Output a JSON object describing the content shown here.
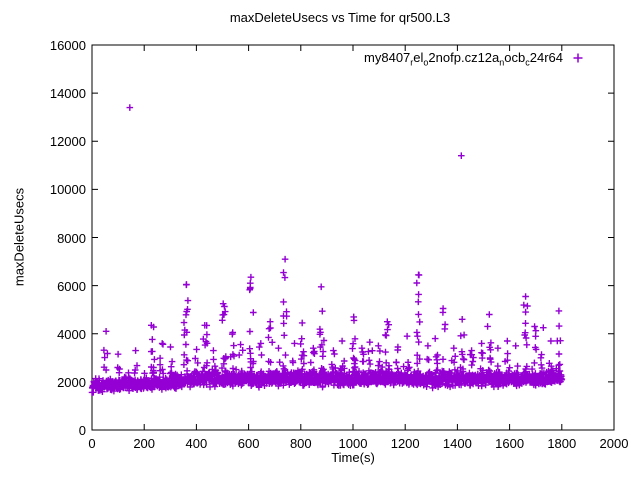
{
  "figure": {
    "background": "#ffffff",
    "frame_color": "#000000",
    "text_color": "#000000",
    "accent_color": "#9400D3"
  },
  "chart_data": {
    "type": "scatter",
    "title": "maxDeleteUsecs vs Time for qr500.L3",
    "xlabel": "Time(s)",
    "ylabel": "maxDeleteUsecs",
    "xlim": [
      0,
      2000
    ],
    "ylim": [
      0,
      16000
    ],
    "xticks": [
      0,
      200,
      400,
      600,
      800,
      1000,
      1200,
      1400,
      1600,
      1800,
      2000
    ],
    "yticks": [
      0,
      2000,
      4000,
      6000,
      8000,
      10000,
      12000,
      14000,
      16000
    ],
    "grid": false,
    "legend_position": "top-right-inside",
    "series": [
      {
        "name": "my8407_rel_o2nofp.cz12a_nocb_c24r64",
        "label_parts": [
          {
            "t": "my8407"
          },
          {
            "t": "r",
            "sub": true
          },
          {
            "t": "el"
          },
          {
            "t": "o",
            "sub": true
          },
          {
            "t": "2nofp.cz12a"
          },
          {
            "t": "n",
            "sub": true
          },
          {
            "t": "ocb"
          },
          {
            "t": "c",
            "sub": true
          },
          {
            "t": "24r64"
          }
        ],
        "marker": "+",
        "color": "#9400D3",
        "duration_seconds": 1800,
        "points_per_second": 1,
        "baseline_band": {
          "center_start": 1780,
          "center_mid": 2110,
          "rise_until": 420,
          "noise_sd": 130,
          "min_start": 1560,
          "min_mid": 1750,
          "upper_fringe_prob": 0.06,
          "upper_fringe_max": 900,
          "wiggle_amp": 25,
          "wiggle_period": 55
        },
        "spike_clusters": [
          [
            52,
            4100,
            6
          ],
          [
            100,
            3150,
            4
          ],
          [
            170,
            3300,
            4
          ],
          [
            230,
            4350,
            12
          ],
          [
            268,
            3600,
            7
          ],
          [
            300,
            3450,
            5
          ],
          [
            360,
            6050,
            16
          ],
          [
            398,
            3350,
            5
          ],
          [
            434,
            4350,
            10
          ],
          [
            468,
            3300,
            5
          ],
          [
            505,
            5250,
            13
          ],
          [
            538,
            4050,
            8
          ],
          [
            572,
            3550,
            5
          ],
          [
            611,
            6350,
            16
          ],
          [
            648,
            3600,
            5
          ],
          [
            684,
            4500,
            9
          ],
          [
            714,
            3400,
            5
          ],
          [
            738,
            7100,
            14
          ],
          [
            776,
            3600,
            5
          ],
          [
            806,
            4450,
            9
          ],
          [
            846,
            3400,
            5
          ],
          [
            881,
            5950,
            13
          ],
          [
            922,
            3300,
            5
          ],
          [
            960,
            3700,
            6
          ],
          [
            1001,
            4700,
            11
          ],
          [
            1034,
            3400,
            5
          ],
          [
            1066,
            3650,
            6
          ],
          [
            1100,
            3500,
            5
          ],
          [
            1131,
            4500,
            10
          ],
          [
            1170,
            3450,
            5
          ],
          [
            1210,
            3900,
            6
          ],
          [
            1251,
            6450,
            15
          ],
          [
            1287,
            3500,
            5
          ],
          [
            1316,
            3800,
            6
          ],
          [
            1347,
            5050,
            9
          ],
          [
            1386,
            3400,
            5
          ],
          [
            1421,
            4600,
            9
          ],
          [
            1456,
            3300,
            5
          ],
          [
            1490,
            3600,
            5
          ],
          [
            1523,
            4800,
            11
          ],
          [
            1556,
            3400,
            5
          ],
          [
            1590,
            3700,
            6
          ],
          [
            1626,
            3500,
            5
          ],
          [
            1661,
            5550,
            13
          ],
          [
            1694,
            4300,
            7
          ],
          [
            1727,
            4250,
            7
          ],
          [
            1760,
            3700,
            5
          ],
          [
            1787,
            4950,
            11
          ]
        ],
        "outliers": [
          [
            145,
            13400
          ],
          [
            1415,
            11400
          ]
        ],
        "seed": 20240814
      }
    ]
  }
}
